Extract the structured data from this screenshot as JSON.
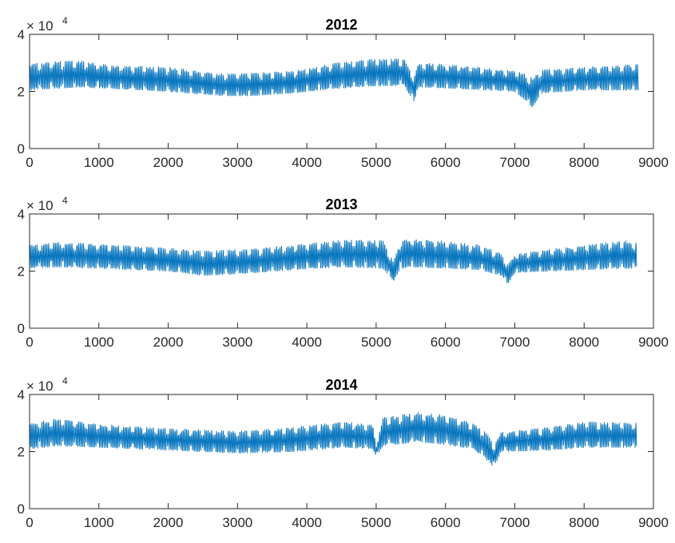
{
  "chart_data": [
    {
      "type": "line",
      "title": "2012",
      "xlabel": "",
      "ylabel": "",
      "xlim": [
        0,
        9000
      ],
      "ylim": [
        0,
        40000
      ],
      "x_ticks": [
        "0",
        "1000",
        "2000",
        "3000",
        "4000",
        "5000",
        "6000",
        "7000",
        "8000",
        "9000"
      ],
      "y_ticks": [
        "0",
        "2",
        "4"
      ],
      "y_exponent": {
        "base": "× 10",
        "power": "4"
      },
      "grid": false,
      "color": "#0072BD",
      "n_points": 8784,
      "envelope": {
        "x": [
          0,
          300,
          700,
          1200,
          2000,
          2800,
          3200,
          3800,
          4400,
          5000,
          5400,
          5550,
          5600,
          5700,
          6200,
          7000,
          7150,
          7250,
          7400,
          8000,
          8784
        ],
        "upper": [
          30500,
          31500,
          31800,
          30000,
          29500,
          27000,
          27500,
          28000,
          31000,
          32500,
          32500,
          26000,
          30500,
          31000,
          30000,
          28000,
          27000,
          26000,
          28500,
          29500,
          30500
        ],
        "lower": [
          20500,
          21000,
          21500,
          21000,
          20000,
          18500,
          18500,
          19500,
          21000,
          22000,
          22000,
          16500,
          21500,
          21500,
          21000,
          20000,
          17000,
          14500,
          19500,
          20500,
          20500
        ]
      }
    },
    {
      "type": "line",
      "title": "2013",
      "xlabel": "",
      "ylabel": "",
      "xlim": [
        0,
        9000
      ],
      "ylim": [
        0,
        40000
      ],
      "x_ticks": [
        "0",
        "1000",
        "2000",
        "3000",
        "4000",
        "5000",
        "6000",
        "7000",
        "8000",
        "9000"
      ],
      "y_ticks": [
        "0",
        "2",
        "4"
      ],
      "y_exponent": {
        "base": "× 10",
        "power": "4"
      },
      "grid": false,
      "color": "#0072BD",
      "n_points": 8760,
      "envelope": {
        "x": [
          0,
          400,
          1000,
          2000,
          2500,
          3000,
          3800,
          4500,
          5100,
          5250,
          5350,
          5500,
          6000,
          6500,
          6800,
          6900,
          7000,
          7500,
          8000,
          8600,
          8760
        ],
        "upper": [
          30000,
          31000,
          30500,
          29000,
          28000,
          28500,
          30000,
          32000,
          32000,
          24000,
          31500,
          32500,
          31500,
          30000,
          27000,
          23000,
          26500,
          28500,
          30000,
          32000,
          31000
        ],
        "lower": [
          21000,
          21500,
          21000,
          20000,
          18500,
          19000,
          20500,
          21500,
          21000,
          16500,
          21000,
          21500,
          21000,
          20500,
          18500,
          15500,
          19500,
          20000,
          20500,
          21000,
          21000
        ]
      }
    },
    {
      "type": "line",
      "title": "2014",
      "xlabel": "",
      "ylabel": "",
      "xlim": [
        0,
        9000
      ],
      "ylim": [
        0,
        40000
      ],
      "x_ticks": [
        "0",
        "1000",
        "2000",
        "3000",
        "4000",
        "5000",
        "6000",
        "7000",
        "8000",
        "9000"
      ],
      "y_ticks": [
        "0",
        "2",
        "4"
      ],
      "y_exponent": {
        "base": "× 10",
        "power": "4"
      },
      "grid": false,
      "color": "#0072BD",
      "n_points": 8760,
      "envelope": {
        "x": [
          0,
          400,
          1000,
          2000,
          3000,
          3800,
          4500,
          4950,
          5000,
          5100,
          5600,
          6000,
          6400,
          6600,
          6700,
          6800,
          7500,
          8000,
          8760
        ],
        "upper": [
          31000,
          32500,
          30500,
          29000,
          28000,
          29500,
          31500,
          30500,
          22500,
          33000,
          35000,
          34000,
          31000,
          27500,
          23000,
          27500,
          29500,
          31500,
          31000
        ],
        "lower": [
          21000,
          22000,
          21500,
          20500,
          19500,
          20000,
          21500,
          21000,
          18500,
          22000,
          23500,
          22500,
          21000,
          17000,
          14500,
          20000,
          20500,
          21500,
          21500
        ]
      }
    }
  ]
}
